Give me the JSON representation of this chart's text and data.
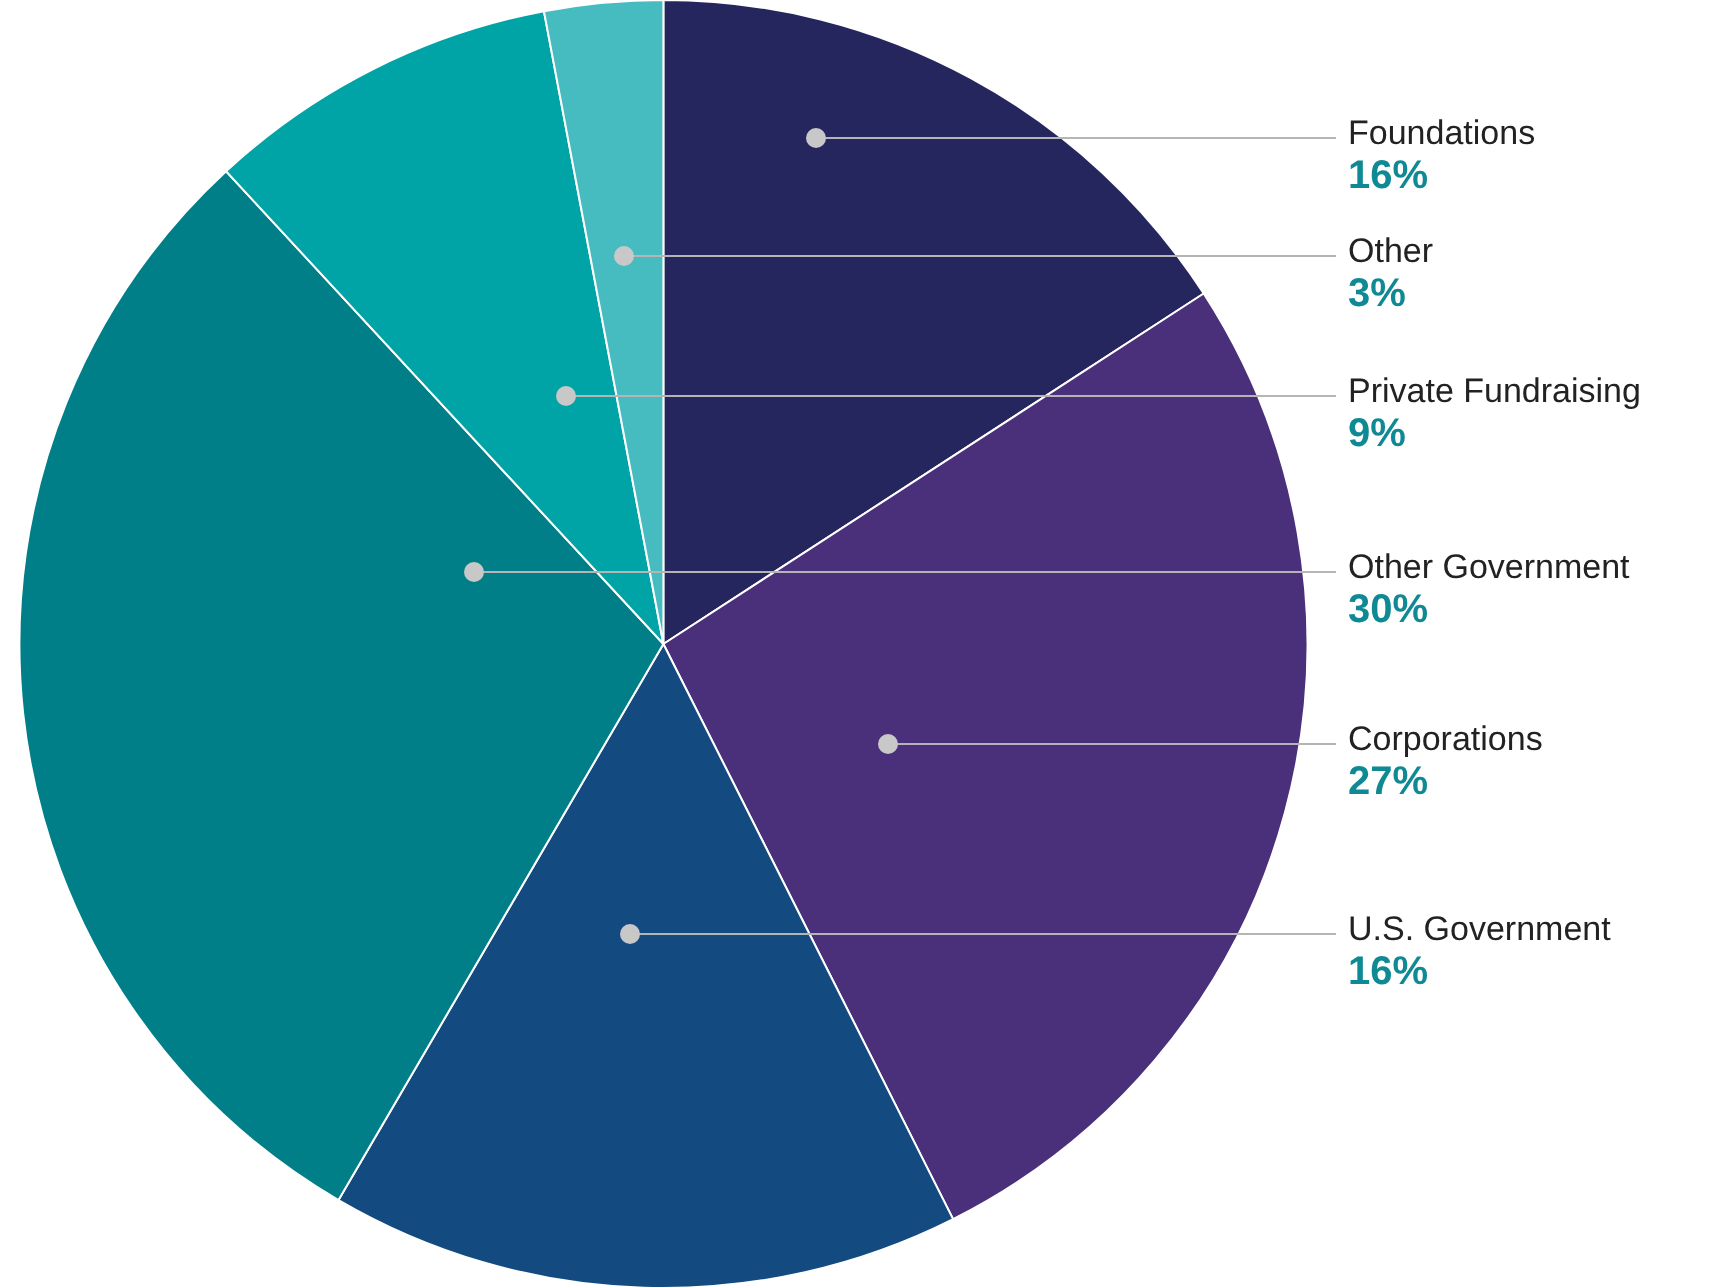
{
  "chart_data": {
    "type": "pie",
    "categories": [
      "Foundations",
      "Corporations",
      "U.S. Government",
      "Other Government",
      "Private Fundraising",
      "Other"
    ],
    "values": [
      16,
      27,
      16,
      30,
      9,
      3
    ],
    "colors": [
      "#25265e",
      "#4a2f7a",
      "#134a80",
      "#007f88",
      "#00a3a6",
      "#47bcc0"
    ],
    "value_labels": [
      "16%",
      "27%",
      "16%",
      "30%",
      "9%",
      "3%"
    ],
    "legend": false
  }
}
